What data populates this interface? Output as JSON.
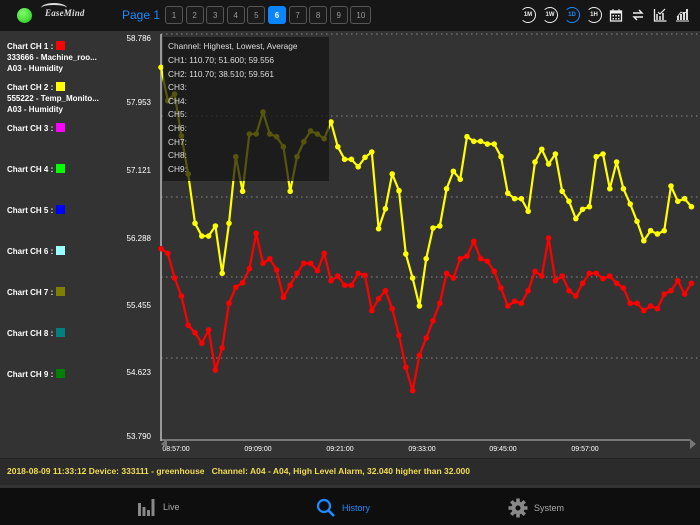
{
  "topbar": {
    "status_color": "#22c21c",
    "logo_text": "EaseMind",
    "page_label": "Page 1",
    "pages": [
      "1",
      "2",
      "3",
      "4",
      "5",
      "6",
      "7",
      "8",
      "9",
      "10"
    ],
    "active_page": "6",
    "range_buttons": [
      {
        "label": "1M",
        "icon": "one-month-icon",
        "selected": false
      },
      {
        "label": "1W",
        "icon": "one-week-icon",
        "selected": false
      },
      {
        "label": "1D",
        "icon": "one-day-icon",
        "selected": true
      },
      {
        "label": "1H",
        "icon": "one-hour-icon",
        "selected": false
      }
    ],
    "tool_icons": [
      "calendar-icon",
      "swap-icon",
      "chart-check-icon",
      "bar-chart-icon"
    ]
  },
  "sidebar": {
    "channels": [
      {
        "label": "Chart CH 1 :",
        "color": "#ff0000",
        "line1": "333666 - Machine_roo...",
        "line2": "A03 - Humidity"
      },
      {
        "label": "Chart CH 2 :",
        "color": "#ffff00",
        "line1": "555222 - Temp_Monito...",
        "line2": "A03 - Humidity"
      },
      {
        "label": "Chart CH 3 :",
        "color": "#ff00ff"
      },
      {
        "label": "Chart CH 4 :",
        "color": "#00ff00"
      },
      {
        "label": "Chart CH 5 :",
        "color": "#0000ff"
      },
      {
        "label": "Chart CH 6 :",
        "color": "#99ffff"
      },
      {
        "label": "Chart CH 7 :",
        "color": "#808000"
      },
      {
        "label": "Chart CH 8 :",
        "color": "#008080"
      },
      {
        "label": "Chart CH 9 :",
        "color": "#008000"
      }
    ]
  },
  "tooltip": {
    "header": "Channel: Highest, Lowest, Average",
    "lines": [
      "CH1: 110.70; 51.600; 59.556",
      "CH2: 110.70; 38.510; 59.561",
      "CH3:",
      "CH4:",
      "CH5:",
      "CH6:",
      "CH7:",
      "CH8:",
      "CH9:"
    ]
  },
  "chart_data": {
    "type": "line",
    "ylim": [
      53.79,
      58.786
    ],
    "y_ticks": [
      "58.786",
      "57.953",
      "57.121",
      "56.288",
      "55.455",
      "54.623",
      "53.790"
    ],
    "x_ticks": [
      "08:57:00",
      "09:09:00",
      "09:21:00",
      "09:33:00",
      "09:45:00",
      "09:57:00"
    ],
    "x_start": "08:55:00",
    "x_interval_minutes": 1,
    "grid": "horizontal dotted",
    "series": [
      {
        "channel": "CH1",
        "color": "#ff0000",
        "values": [
          56.141,
          56.083,
          55.773,
          55.547,
          55.18,
          55.087,
          54.954,
          55.121,
          54.618,
          54.895,
          55.456,
          55.657,
          55.714,
          55.89,
          56.334,
          55.958,
          56.016,
          55.874,
          55.531,
          55.682,
          55.832,
          55.958,
          55.958,
          55.865,
          56.083,
          55.739,
          55.798,
          55.682,
          55.682,
          55.832,
          55.807,
          55.363,
          55.513,
          55.614,
          55.388,
          55.054,
          54.652,
          54.359,
          54.803,
          55.02,
          55.237,
          55.456,
          55.832,
          55.773,
          56.016,
          56.049,
          56.234,
          56.016,
          55.983,
          55.857,
          55.648,
          55.422,
          55.481,
          55.456,
          55.614,
          55.857,
          55.798,
          56.275,
          55.739,
          55.798,
          55.614,
          55.547,
          55.707,
          55.832,
          55.832,
          55.765,
          55.798,
          55.707,
          55.648,
          55.456,
          55.456,
          55.363,
          55.422,
          55.388,
          55.572,
          55.614,
          55.739,
          55.572,
          55.707
        ]
      },
      {
        "channel": "CH2",
        "color": "#ffff00",
        "values": [
          58.418,
          57.999,
          58.083,
          57.556,
          57.079,
          56.46,
          56.3,
          56.3,
          56.426,
          55.832,
          56.46,
          57.296,
          56.862,
          57.581,
          57.581,
          57.857,
          57.581,
          57.547,
          57.421,
          56.862,
          57.296,
          57.484,
          57.619,
          57.581,
          57.522,
          57.732,
          57.421,
          57.263,
          57.263,
          57.17,
          57.288,
          57.355,
          56.392,
          56.643,
          57.079,
          56.869,
          56.075,
          55.773,
          55.422,
          56.016,
          56.401,
          56.426,
          56.894,
          57.113,
          57.012,
          57.547,
          57.489,
          57.489,
          57.455,
          57.455,
          57.296,
          56.837,
          56.769,
          56.769,
          56.611,
          57.229,
          57.389,
          57.204,
          57.33,
          56.862,
          56.736,
          56.518,
          56.636,
          56.668,
          57.296,
          57.33,
          56.894,
          57.229,
          56.894,
          56.702,
          56.485,
          56.241,
          56.367,
          56.326,
          56.367,
          56.928,
          56.736,
          56.769,
          56.668
        ]
      }
    ]
  },
  "alarm": {
    "text": "2018-08-09 11:33:12 Device: 333111 - greenhouse   Channel: A04 - A04, High Level Alarm, 32.040 higher than 32.000"
  },
  "nav": {
    "live": "Live",
    "history": "History",
    "system": "System",
    "active": "history"
  }
}
